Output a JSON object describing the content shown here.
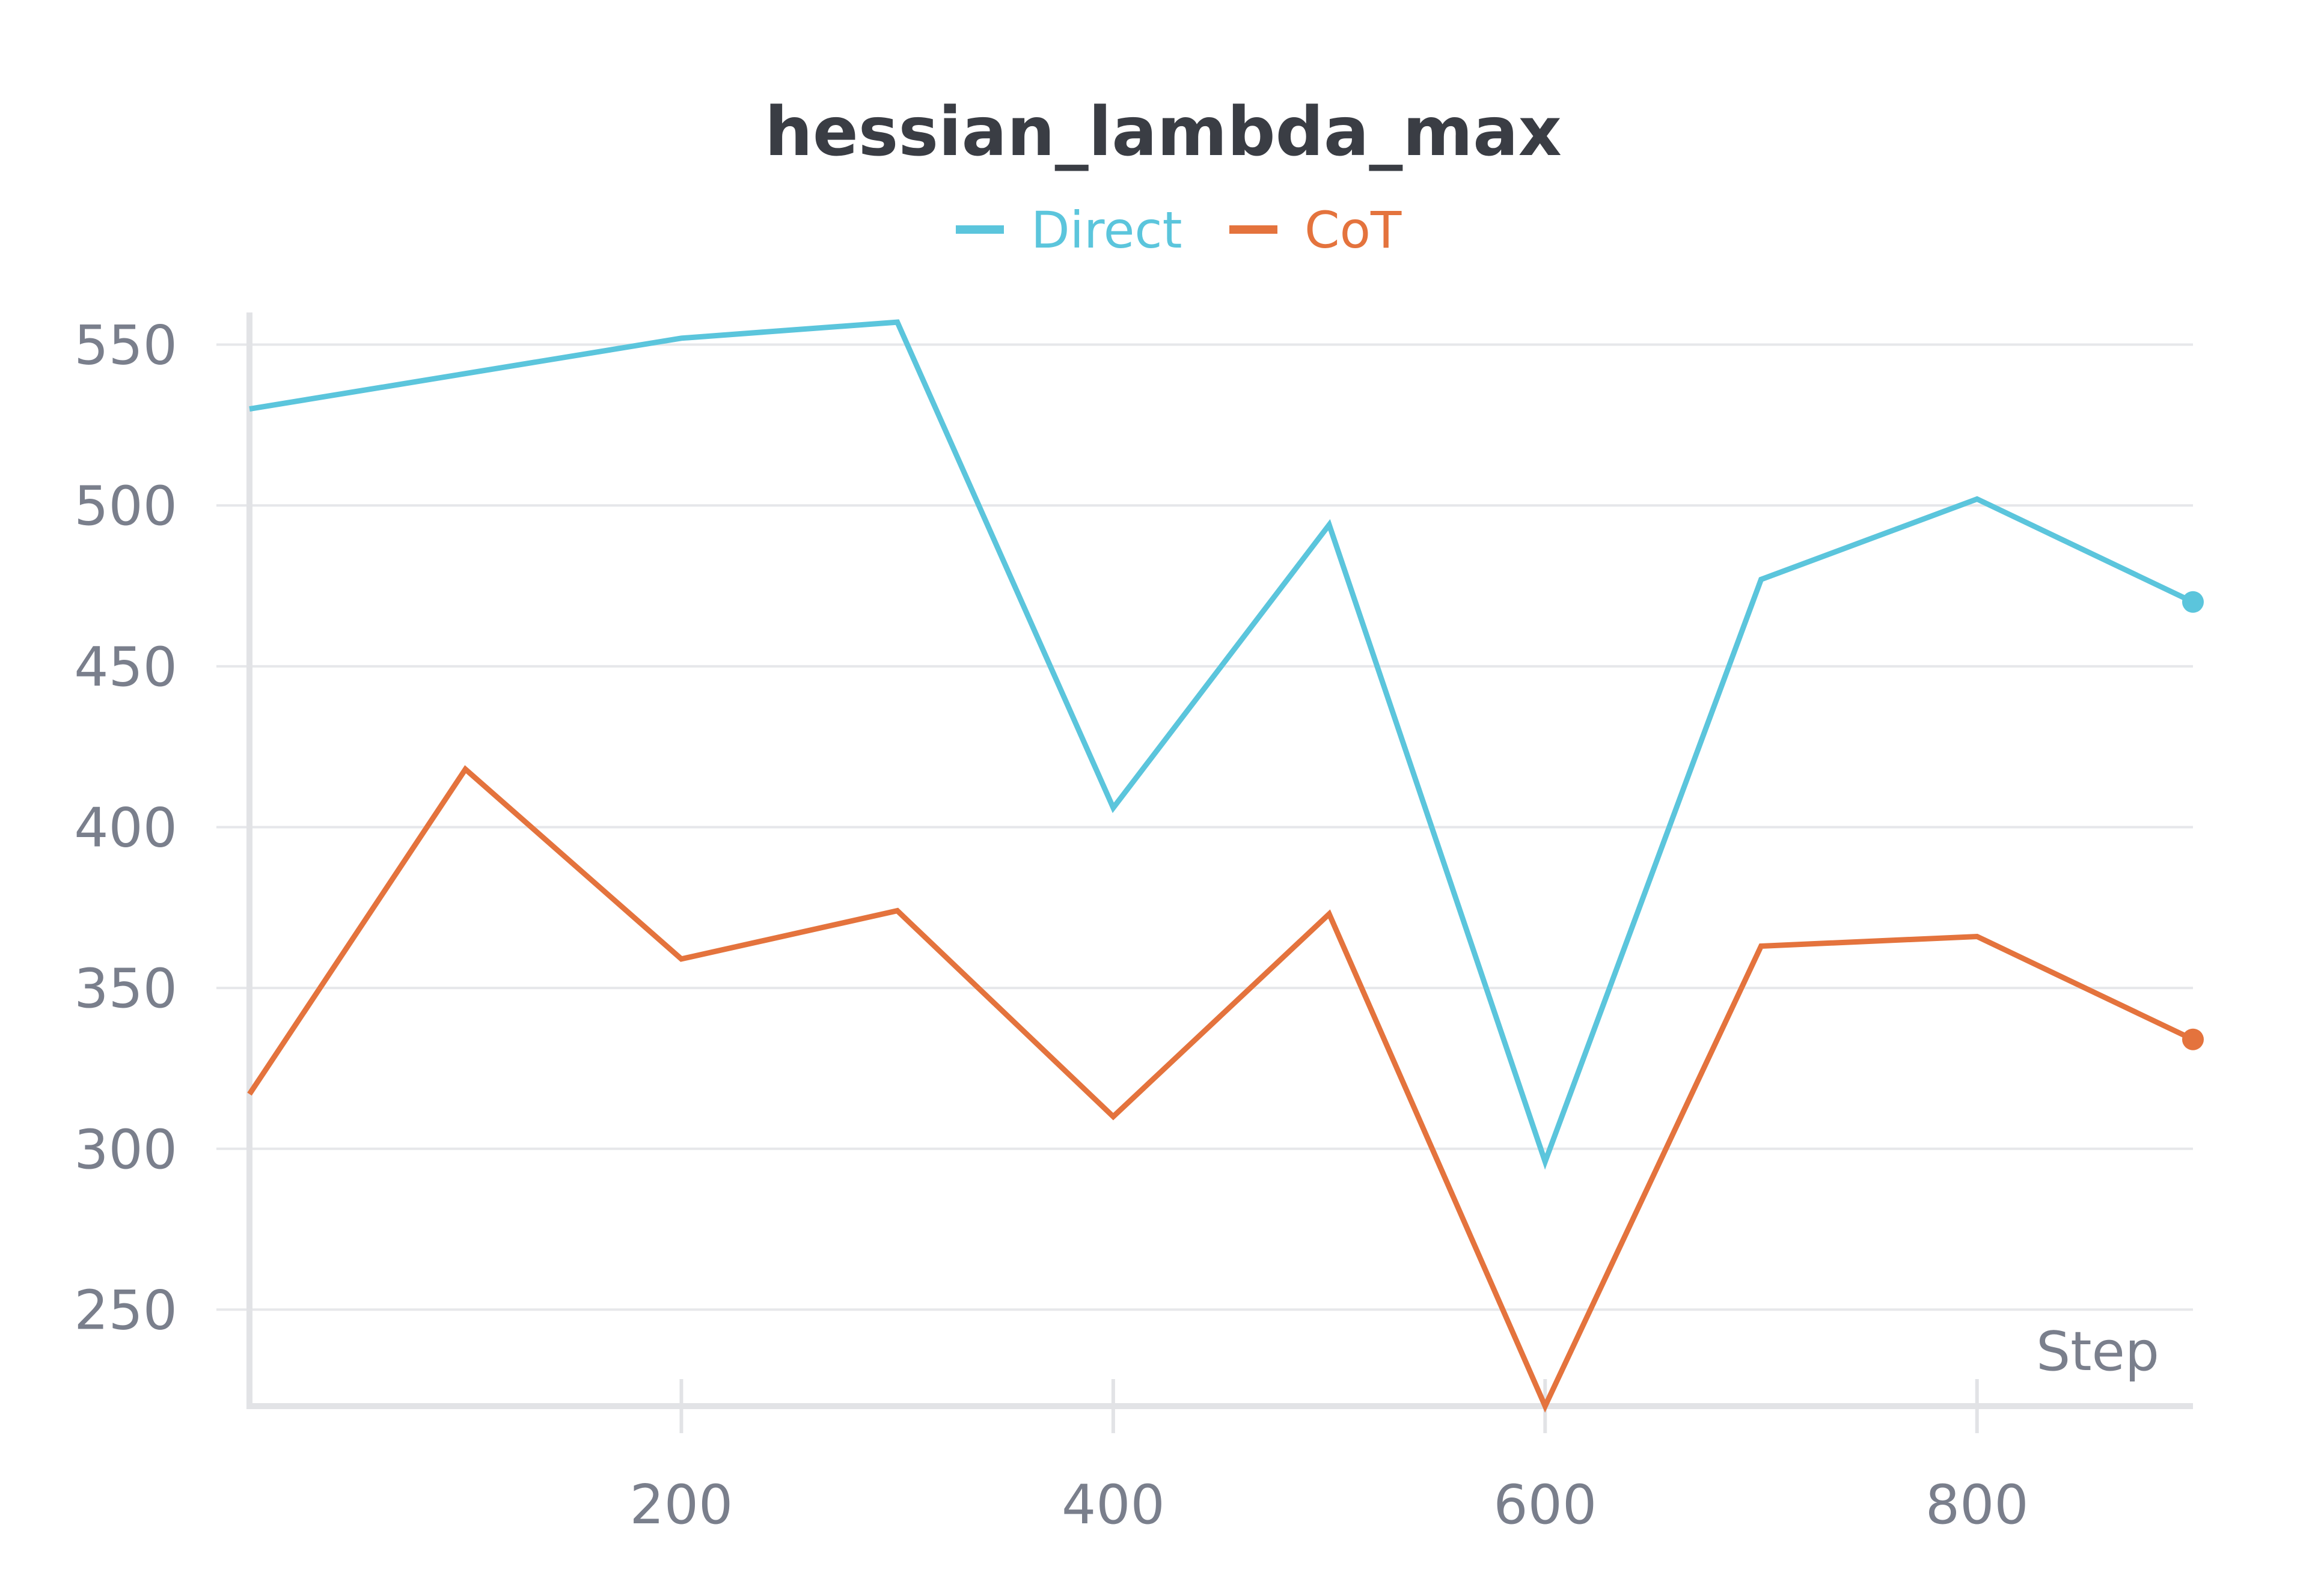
{
  "chart_data": {
    "type": "line",
    "title": "hessian_lambda_max",
    "xlabel": "Step",
    "ylabel": "",
    "x": [
      0,
      100,
      200,
      300,
      400,
      500,
      600,
      700,
      800,
      900
    ],
    "xlim": [
      0,
      900
    ],
    "ylim": [
      220,
      560
    ],
    "x_ticks": [
      200,
      400,
      600,
      800
    ],
    "y_ticks": [
      250,
      300,
      350,
      400,
      450,
      500,
      550
    ],
    "grid": true,
    "legend_position": "top-center",
    "series": [
      {
        "name": "Direct",
        "color": "#5bc5dc",
        "values": [
          530,
          541,
          552,
          557,
          406,
          494,
          296,
          477,
          502,
          470
        ]
      },
      {
        "name": "CoT",
        "color": "#e4733d",
        "values": [
          317,
          418,
          359,
          374,
          310,
          373,
          220,
          363,
          366,
          334
        ]
      }
    ]
  }
}
